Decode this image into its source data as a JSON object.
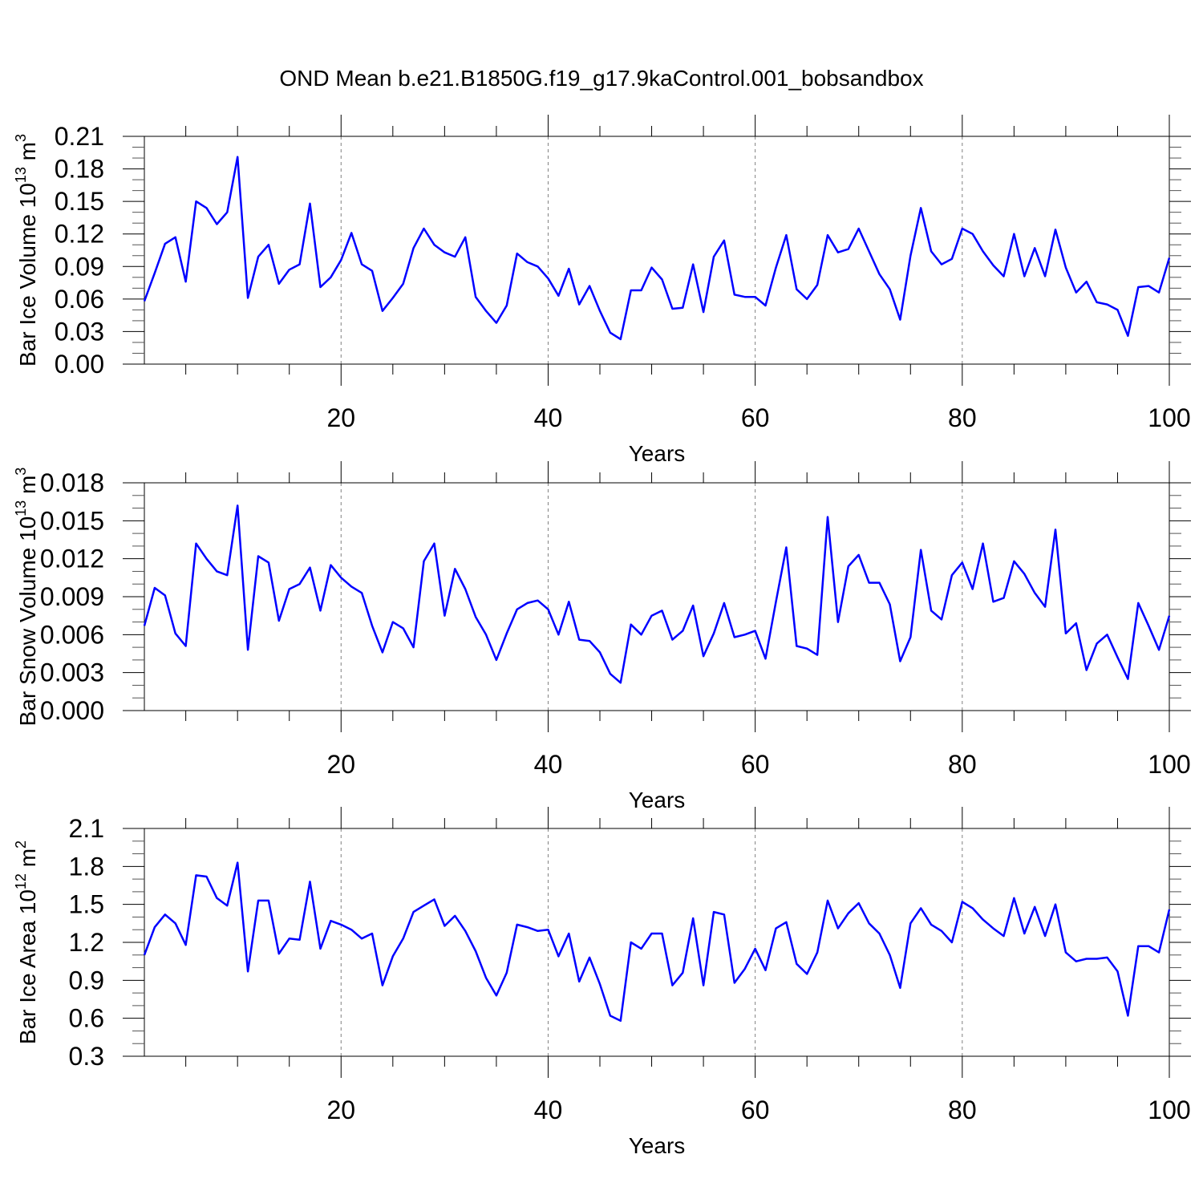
{
  "title": "OND Mean b.e21.B1850G.f19_g17.9kaControl.001_bobsandbox",
  "colors": {
    "line": "#0000ff",
    "axis": "#000000",
    "grid": "#808080"
  },
  "chart_data": [
    {
      "type": "line",
      "ylabel": "Bar Ice Volume 10",
      "ylabel_exp": "13",
      "ylabel_unit": " m",
      "ylabel_unit_exp": "3",
      "xlabel": "Years",
      "xlim": [
        1,
        100
      ],
      "ylim": [
        0,
        0.21
      ],
      "yticks": [
        "0.00",
        "0.03",
        "0.06",
        "0.09",
        "0.12",
        "0.15",
        "0.18",
        "0.21"
      ],
      "xticks": [
        "20",
        "40",
        "60",
        "80",
        "100"
      ],
      "grid": "dashed vertical at major x ticks",
      "x_start": 1,
      "values": [
        0.058,
        0.084,
        0.111,
        0.117,
        0.076,
        0.15,
        0.144,
        0.129,
        0.14,
        0.191,
        0.061,
        0.099,
        0.11,
        0.074,
        0.087,
        0.092,
        0.148,
        0.071,
        0.08,
        0.096,
        0.121,
        0.092,
        0.086,
        0.049,
        0.061,
        0.074,
        0.107,
        0.125,
        0.11,
        0.103,
        0.099,
        0.117,
        0.062,
        0.049,
        0.038,
        0.054,
        0.102,
        0.094,
        0.09,
        0.079,
        0.063,
        0.088,
        0.055,
        0.072,
        0.049,
        0.029,
        0.023,
        0.068,
        0.068,
        0.089,
        0.078,
        0.051,
        0.052,
        0.092,
        0.048,
        0.099,
        0.114,
        0.064,
        0.062,
        0.062,
        0.054,
        0.089,
        0.119,
        0.069,
        0.06,
        0.073,
        0.119,
        0.103,
        0.106,
        0.125,
        0.104,
        0.083,
        0.069,
        0.041,
        0.1,
        0.144,
        0.104,
        0.092,
        0.097,
        0.125,
        0.12,
        0.104,
        0.091,
        0.081,
        0.12,
        0.081,
        0.107,
        0.081,
        0.124,
        0.089,
        0.066,
        0.076,
        0.057,
        0.055,
        0.05,
        0.026,
        0.071,
        0.072,
        0.066,
        0.098
      ]
    },
    {
      "type": "line",
      "ylabel": "Bar Snow Volume 10",
      "ylabel_exp": "13",
      "ylabel_unit": " m",
      "ylabel_unit_exp": "3",
      "xlabel": "Years",
      "xlim": [
        1,
        100
      ],
      "ylim": [
        0,
        0.018
      ],
      "yticks": [
        "0.000",
        "0.003",
        "0.006",
        "0.009",
        "0.012",
        "0.015",
        "0.018"
      ],
      "xticks": [
        "20",
        "40",
        "60",
        "80",
        "100"
      ],
      "grid": "dashed vertical at major x ticks",
      "x_start": 1,
      "values": [
        0.0067,
        0.0097,
        0.0091,
        0.0061,
        0.0051,
        0.0132,
        0.012,
        0.011,
        0.0107,
        0.0162,
        0.0048,
        0.0122,
        0.0117,
        0.0071,
        0.0096,
        0.01,
        0.0113,
        0.0079,
        0.0115,
        0.0105,
        0.0098,
        0.0093,
        0.0067,
        0.0046,
        0.007,
        0.0065,
        0.005,
        0.0118,
        0.0132,
        0.0075,
        0.0112,
        0.0096,
        0.0074,
        0.006,
        0.004,
        0.0061,
        0.008,
        0.0085,
        0.0087,
        0.008,
        0.006,
        0.0086,
        0.0056,
        0.0055,
        0.0046,
        0.0029,
        0.0022,
        0.0068,
        0.006,
        0.0075,
        0.0079,
        0.0056,
        0.0063,
        0.0083,
        0.0043,
        0.0061,
        0.0085,
        0.0058,
        0.006,
        0.0063,
        0.0041,
        0.0086,
        0.0129,
        0.0051,
        0.0049,
        0.0044,
        0.0153,
        0.007,
        0.0114,
        0.0123,
        0.0101,
        0.0101,
        0.0084,
        0.0039,
        0.0058,
        0.0127,
        0.0079,
        0.0072,
        0.0107,
        0.0117,
        0.0096,
        0.0132,
        0.0086,
        0.0089,
        0.0118,
        0.0108,
        0.0093,
        0.0082,
        0.0143,
        0.0061,
        0.0069,
        0.0032,
        0.0053,
        0.006,
        0.0042,
        0.0025,
        0.0085,
        0.0067,
        0.0048,
        0.0075
      ]
    },
    {
      "type": "line",
      "ylabel": "Bar Ice Area 10",
      "ylabel_exp": "12",
      "ylabel_unit": " m",
      "ylabel_unit_exp": "2",
      "xlabel": "Years",
      "xlim": [
        1,
        100
      ],
      "ylim": [
        0.3,
        2.1
      ],
      "yticks": [
        "0.3",
        "0.6",
        "0.9",
        "1.2",
        "1.5",
        "1.8",
        "2.1"
      ],
      "xticks": [
        "20",
        "40",
        "60",
        "80",
        "100"
      ],
      "grid": "dashed vertical at major x ticks",
      "x_start": 1,
      "values": [
        1.1,
        1.32,
        1.42,
        1.35,
        1.18,
        1.73,
        1.72,
        1.55,
        1.49,
        1.83,
        0.97,
        1.53,
        1.53,
        1.11,
        1.23,
        1.22,
        1.68,
        1.15,
        1.37,
        1.34,
        1.3,
        1.23,
        1.27,
        0.86,
        1.09,
        1.23,
        1.44,
        1.49,
        1.54,
        1.33,
        1.41,
        1.29,
        1.13,
        0.92,
        0.78,
        0.96,
        1.34,
        1.32,
        1.29,
        1.3,
        1.09,
        1.27,
        0.89,
        1.08,
        0.87,
        0.62,
        0.58,
        1.2,
        1.15,
        1.27,
        1.27,
        0.86,
        0.96,
        1.39,
        0.86,
        1.44,
        1.42,
        0.88,
        0.99,
        1.15,
        0.98,
        1.31,
        1.36,
        1.03,
        0.95,
        1.12,
        1.53,
        1.31,
        1.43,
        1.51,
        1.35,
        1.27,
        1.1,
        0.84,
        1.35,
        1.47,
        1.34,
        1.29,
        1.2,
        1.52,
        1.47,
        1.38,
        1.31,
        1.25,
        1.55,
        1.27,
        1.48,
        1.25,
        1.5,
        1.12,
        1.05,
        1.07,
        1.07,
        1.08,
        0.97,
        0.62,
        1.17,
        1.17,
        1.12,
        1.46
      ]
    }
  ]
}
